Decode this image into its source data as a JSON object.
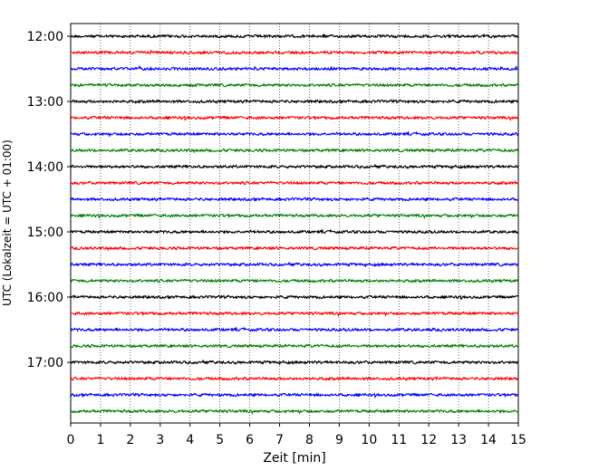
{
  "chart_data": {
    "type": "line",
    "title": "",
    "xlabel": "Zeit  [min]",
    "ylabel": "UTC (Lokalzeit = UTC + 01:00)",
    "xlim": [
      0,
      15
    ],
    "x_ticks": [
      0,
      1,
      2,
      3,
      4,
      5,
      6,
      7,
      8,
      9,
      10,
      11,
      12,
      13,
      14,
      15
    ],
    "x_tick_labels": [
      "0",
      "1",
      "2",
      "3",
      "4",
      "5",
      "6",
      "7",
      "8",
      "9",
      "10",
      "11",
      "12",
      "13",
      "14",
      "15"
    ],
    "y_hour_labels": [
      "12:00",
      "13:00",
      "14:00",
      "15:00",
      "16:00",
      "17:00"
    ],
    "traces_per_hour": 4,
    "trace_minutes": 15,
    "trace_count": 24,
    "grid": "vertical-dotted",
    "trace_colors": [
      "#000000",
      "#ff0000",
      "#0000ff",
      "#008000"
    ]
  }
}
